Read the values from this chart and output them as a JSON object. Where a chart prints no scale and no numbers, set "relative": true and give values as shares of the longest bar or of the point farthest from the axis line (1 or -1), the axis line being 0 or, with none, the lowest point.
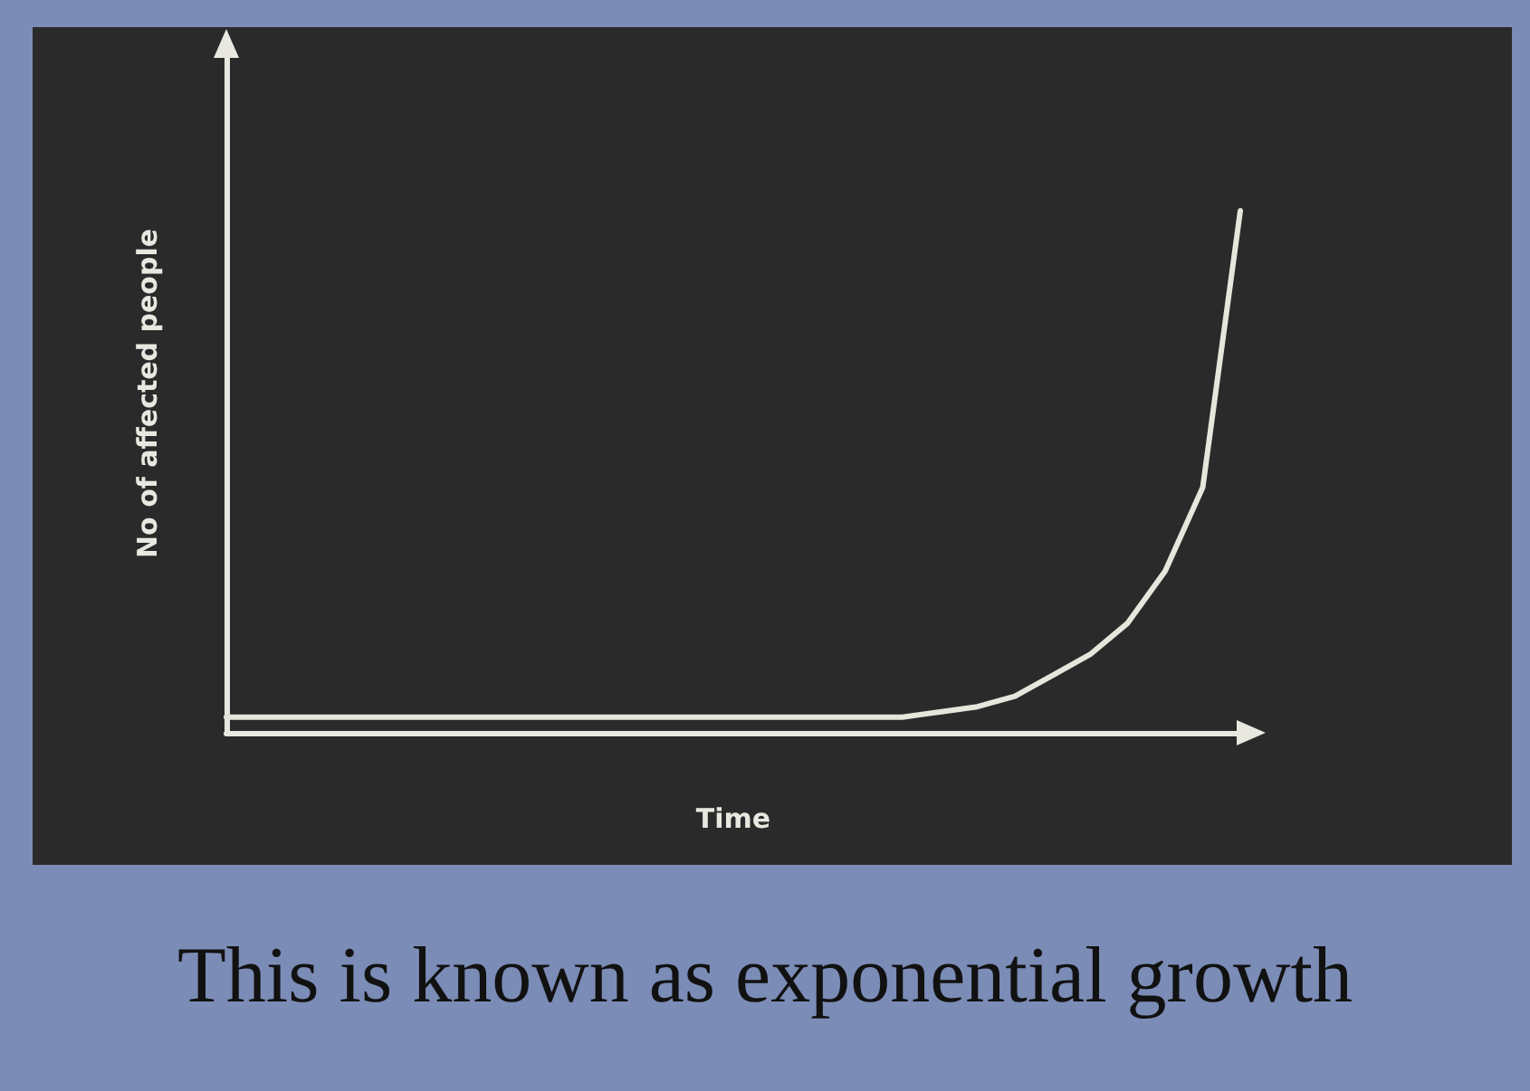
{
  "chart_data": {
    "type": "line",
    "xlabel": "Time",
    "ylabel": "No of affected people",
    "annotations": [
      "This is known as exponential growth"
    ],
    "categories": [
      null,
      null,
      null,
      null,
      null,
      null,
      null,
      null,
      null,
      null,
      null,
      null,
      null,
      null,
      null,
      null,
      null,
      null,
      null,
      null,
      null,
      null,
      null,
      null,
      null,
      null,
      null,
      null
    ],
    "series": [
      {
        "color": "#e6e6dc",
        "values": [
          0.03,
          0.03,
          0.03,
          0.03,
          0.03,
          0.03,
          0.03,
          0.03,
          0.03,
          0.03,
          0.03,
          0.03,
          0.03,
          0.03,
          0.03,
          0.03,
          0.03,
          0.03,
          0.03,
          0.04,
          0.05,
          0.07,
          0.11,
          0.15,
          0.21,
          0.31,
          0.47,
          1.0
        ]
      }
    ],
    "relative": true,
    "grid": false,
    "marker": "none",
    "line_style": "solid"
  }
}
